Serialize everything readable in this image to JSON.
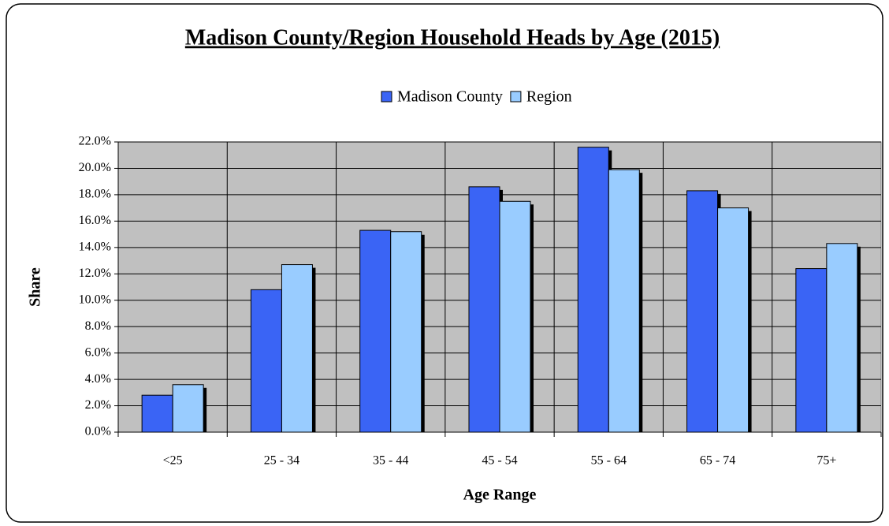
{
  "chart_data": {
    "type": "bar",
    "title": "Madison County/Region Household Heads by Age (2015)",
    "x_label": "Age Range",
    "y_label": "Share",
    "categories": [
      "<25",
      "25 - 34",
      "35 - 44",
      "45 - 54",
      "55 - 64",
      "65 - 74",
      "75+"
    ],
    "series": [
      {
        "name": "Madison County",
        "color": "#3a64f5",
        "values": [
          2.8,
          10.8,
          15.3,
          18.6,
          21.6,
          18.3,
          12.4
        ]
      },
      {
        "name": "Region",
        "color": "#99ccff",
        "values": [
          3.6,
          12.7,
          15.2,
          17.5,
          19.9,
          17.0,
          14.3
        ]
      }
    ],
    "ylim": [
      0,
      22
    ],
    "yticks": [
      {
        "value": 0,
        "label": "0.0%"
      },
      {
        "value": 2,
        "label": "2.0%"
      },
      {
        "value": 4,
        "label": "4.0%"
      },
      {
        "value": 6,
        "label": "6.0%"
      },
      {
        "value": 8,
        "label": "8.0%"
      },
      {
        "value": 10,
        "label": "10.0%"
      },
      {
        "value": 12,
        "label": "12.0%"
      },
      {
        "value": 14,
        "label": "14.0%"
      },
      {
        "value": 16,
        "label": "16.0%"
      },
      {
        "value": 18,
        "label": "18.0%"
      },
      {
        "value": 20,
        "label": "20.0%"
      },
      {
        "value": 22,
        "label": "22.0%"
      }
    ],
    "grid": true,
    "legend": "top"
  }
}
